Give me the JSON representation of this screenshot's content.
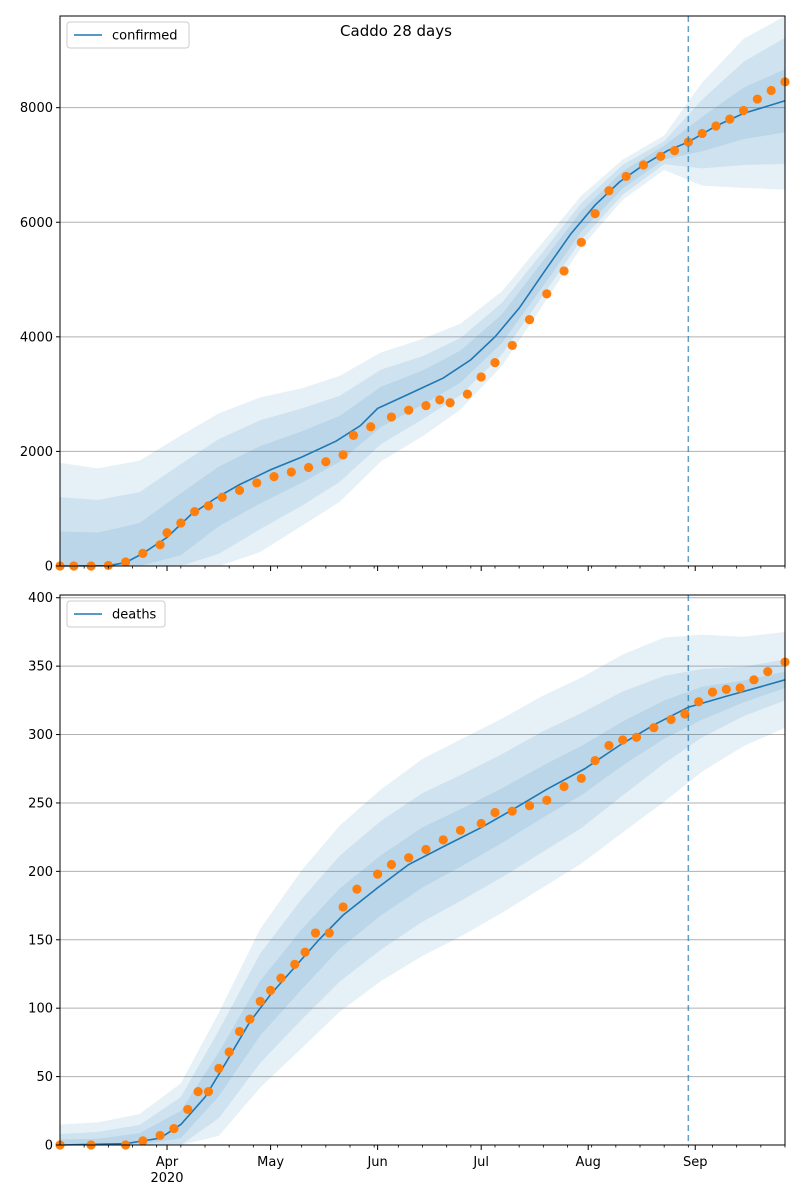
{
  "title": "Caddo 28 days",
  "colors": {
    "model_line": "#1f77b4",
    "observed": "#ff7f0e",
    "band": "#1f77b4",
    "grid": "#b0b0b0",
    "cutoff": "#1f77b4"
  },
  "x_axis": {
    "type": "date",
    "range": [
      "2020-03-01",
      "2020-09-27"
    ],
    "major_ticks": [
      {
        "date": "2020-04-01",
        "label": "Apr"
      },
      {
        "date": "2020-05-01",
        "label": "May"
      },
      {
        "date": "2020-06-01",
        "label": "Jun"
      },
      {
        "date": "2020-07-01",
        "label": "Jul"
      },
      {
        "date": "2020-08-01",
        "label": "Aug"
      },
      {
        "date": "2020-09-01",
        "label": "Sep"
      }
    ],
    "year_label": "2020",
    "cutoff_date": "2020-08-30"
  },
  "chart_data": [
    {
      "type": "line",
      "legend": {
        "label": "confirmed",
        "placement": "upper left"
      },
      "ylim": [
        0,
        9600
      ],
      "yticks": [
        0,
        2000,
        4000,
        6000,
        8000
      ],
      "grid": "horizontal",
      "model_series": {
        "name": "confirmed",
        "points": [
          [
            "2020-03-01",
            0
          ],
          [
            "2020-03-15",
            5
          ],
          [
            "2020-03-20",
            60
          ],
          [
            "2020-03-25",
            220
          ],
          [
            "2020-04-01",
            500
          ],
          [
            "2020-04-08",
            900
          ],
          [
            "2020-04-15",
            1180
          ],
          [
            "2020-04-22",
            1420
          ],
          [
            "2020-05-01",
            1680
          ],
          [
            "2020-05-10",
            1900
          ],
          [
            "2020-05-20",
            2180
          ],
          [
            "2020-05-27",
            2450
          ],
          [
            "2020-06-01",
            2750
          ],
          [
            "2020-06-10",
            3000
          ],
          [
            "2020-06-20",
            3280
          ],
          [
            "2020-06-28",
            3600
          ],
          [
            "2020-07-05",
            4000
          ],
          [
            "2020-07-12",
            4500
          ],
          [
            "2020-07-20",
            5200
          ],
          [
            "2020-07-27",
            5800
          ],
          [
            "2020-08-03",
            6300
          ],
          [
            "2020-08-10",
            6700
          ],
          [
            "2020-08-17",
            7000
          ],
          [
            "2020-08-24",
            7250
          ],
          [
            "2020-08-30",
            7400
          ],
          [
            "2020-09-07",
            7680
          ],
          [
            "2020-09-15",
            7900
          ],
          [
            "2020-09-27",
            8120
          ]
        ]
      },
      "observed_points": [
        [
          "2020-03-01",
          0
        ],
        [
          "2020-03-05",
          0
        ],
        [
          "2020-03-10",
          0
        ],
        [
          "2020-03-15",
          10
        ],
        [
          "2020-03-20",
          70
        ],
        [
          "2020-03-25",
          220
        ],
        [
          "2020-03-30",
          370
        ],
        [
          "2020-04-01",
          580
        ],
        [
          "2020-04-05",
          750
        ],
        [
          "2020-04-09",
          950
        ],
        [
          "2020-04-13",
          1050
        ],
        [
          "2020-04-17",
          1200
        ],
        [
          "2020-04-22",
          1320
        ],
        [
          "2020-04-27",
          1450
        ],
        [
          "2020-05-02",
          1560
        ],
        [
          "2020-05-07",
          1640
        ],
        [
          "2020-05-12",
          1720
        ],
        [
          "2020-05-17",
          1820
        ],
        [
          "2020-05-22",
          1940
        ],
        [
          "2020-05-25",
          2280
        ],
        [
          "2020-05-30",
          2430
        ],
        [
          "2020-06-05",
          2600
        ],
        [
          "2020-06-10",
          2720
        ],
        [
          "2020-06-15",
          2800
        ],
        [
          "2020-06-19",
          2900
        ],
        [
          "2020-06-22",
          2850
        ],
        [
          "2020-06-27",
          3000
        ],
        [
          "2020-07-01",
          3300
        ],
        [
          "2020-07-05",
          3550
        ],
        [
          "2020-07-10",
          3850
        ],
        [
          "2020-07-15",
          4300
        ],
        [
          "2020-07-20",
          4750
        ],
        [
          "2020-07-25",
          5150
        ],
        [
          "2020-07-30",
          5650
        ],
        [
          "2020-08-03",
          6150
        ],
        [
          "2020-08-07",
          6550
        ],
        [
          "2020-08-12",
          6800
        ],
        [
          "2020-08-17",
          7000
        ],
        [
          "2020-08-22",
          7150
        ],
        [
          "2020-08-26",
          7250
        ],
        [
          "2020-08-30",
          7400
        ],
        [
          "2020-09-03",
          7550
        ],
        [
          "2020-09-07",
          7680
        ],
        [
          "2020-09-11",
          7800
        ],
        [
          "2020-09-15",
          7950
        ],
        [
          "2020-09-19",
          8150
        ],
        [
          "2020-09-23",
          8300
        ],
        [
          "2020-09-27",
          8450
        ]
      ],
      "bands": [
        {
          "label": "outer",
          "width": [
            1800,
            1700,
            1650,
            1550,
            1450,
            1350,
            1200,
            1100,
            950,
            850,
            750,
            650,
            550,
            450,
            350,
            300,
            900,
            1300,
            1550
          ]
        },
        {
          "label": "middle",
          "width": [
            1200,
            1150,
            1100,
            1050,
            1000,
            950,
            850,
            750,
            650,
            550,
            500,
            450,
            380,
            320,
            260,
            200,
            600,
            900,
            1100
          ]
        },
        {
          "label": "inner",
          "width": [
            600,
            580,
            560,
            540,
            520,
            500,
            450,
            400,
            350,
            300,
            280,
            250,
            220,
            180,
            150,
            120,
            300,
            450,
            550
          ]
        }
      ]
    },
    {
      "type": "line",
      "legend": {
        "label": "deaths",
        "placement": "upper left"
      },
      "ylim": [
        0,
        402
      ],
      "yticks": [
        0,
        50,
        100,
        150,
        200,
        250,
        300,
        350,
        400
      ],
      "grid": "horizontal",
      "model_series": {
        "name": "deaths",
        "points": [
          [
            "2020-03-01",
            0
          ],
          [
            "2020-03-20",
            1
          ],
          [
            "2020-03-30",
            5
          ],
          [
            "2020-04-05",
            15
          ],
          [
            "2020-04-12",
            35
          ],
          [
            "2020-04-18",
            60
          ],
          [
            "2020-04-25",
            90
          ],
          [
            "2020-05-01",
            110
          ],
          [
            "2020-05-08",
            130
          ],
          [
            "2020-05-15",
            150
          ],
          [
            "2020-05-22",
            168
          ],
          [
            "2020-06-01",
            188
          ],
          [
            "2020-06-10",
            205
          ],
          [
            "2020-06-20",
            218
          ],
          [
            "2020-07-01",
            232
          ],
          [
            "2020-07-10",
            245
          ],
          [
            "2020-07-20",
            260
          ],
          [
            "2020-07-31",
            275
          ],
          [
            "2020-08-10",
            292
          ],
          [
            "2020-08-20",
            307
          ],
          [
            "2020-08-30",
            320
          ],
          [
            "2020-09-10",
            328
          ],
          [
            "2020-09-20",
            335
          ],
          [
            "2020-09-27",
            340
          ]
        ]
      },
      "observed_points": [
        [
          "2020-03-01",
          0
        ],
        [
          "2020-03-10",
          0
        ],
        [
          "2020-03-20",
          0
        ],
        [
          "2020-03-25",
          3
        ],
        [
          "2020-03-30",
          7
        ],
        [
          "2020-04-03",
          12
        ],
        [
          "2020-04-07",
          26
        ],
        [
          "2020-04-10",
          39
        ],
        [
          "2020-04-13",
          39
        ],
        [
          "2020-04-16",
          56
        ],
        [
          "2020-04-19",
          68
        ],
        [
          "2020-04-22",
          83
        ],
        [
          "2020-04-25",
          92
        ],
        [
          "2020-04-28",
          105
        ],
        [
          "2020-05-01",
          113
        ],
        [
          "2020-05-04",
          122
        ],
        [
          "2020-05-08",
          132
        ],
        [
          "2020-05-11",
          141
        ],
        [
          "2020-05-14",
          155
        ],
        [
          "2020-05-18",
          155
        ],
        [
          "2020-05-22",
          174
        ],
        [
          "2020-05-26",
          187
        ],
        [
          "2020-06-01",
          198
        ],
        [
          "2020-06-05",
          205
        ],
        [
          "2020-06-10",
          210
        ],
        [
          "2020-06-15",
          216
        ],
        [
          "2020-06-20",
          223
        ],
        [
          "2020-06-25",
          230
        ],
        [
          "2020-07-01",
          235
        ],
        [
          "2020-07-05",
          243
        ],
        [
          "2020-07-10",
          244
        ],
        [
          "2020-07-15",
          248
        ],
        [
          "2020-07-20",
          252
        ],
        [
          "2020-07-25",
          262
        ],
        [
          "2020-07-30",
          268
        ],
        [
          "2020-08-03",
          281
        ],
        [
          "2020-08-07",
          292
        ],
        [
          "2020-08-11",
          296
        ],
        [
          "2020-08-15",
          298
        ],
        [
          "2020-08-20",
          305
        ],
        [
          "2020-08-25",
          311
        ],
        [
          "2020-08-29",
          315
        ],
        [
          "2020-09-02",
          324
        ],
        [
          "2020-09-06",
          331
        ],
        [
          "2020-09-10",
          333
        ],
        [
          "2020-09-14",
          334
        ],
        [
          "2020-09-18",
          340
        ],
        [
          "2020-09-22",
          346
        ],
        [
          "2020-09-27",
          353
        ]
      ],
      "bands": [
        {
          "label": "outer",
          "width": [
            15,
            16,
            20,
            30,
            45,
            58,
            65,
            68,
            70,
            72,
            72,
            71,
            70,
            68,
            65,
            60,
            50,
            40,
            35
          ]
        },
        {
          "label": "middle",
          "width": [
            8,
            9,
            12,
            20,
            32,
            40,
            44,
            46,
            47,
            47,
            46,
            45,
            44,
            42,
            38,
            32,
            25,
            18,
            15
          ]
        },
        {
          "label": "inner",
          "width": [
            4,
            4,
            6,
            10,
            16,
            20,
            22,
            22,
            22,
            22,
            21,
            20,
            19,
            18,
            16,
            14,
            12,
            8,
            6
          ]
        }
      ]
    }
  ]
}
